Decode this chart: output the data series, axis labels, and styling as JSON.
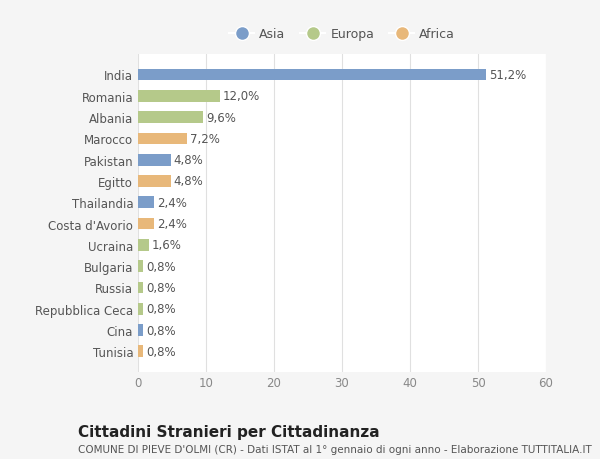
{
  "countries": [
    "India",
    "Romania",
    "Albania",
    "Marocco",
    "Pakistan",
    "Egitto",
    "Thailandia",
    "Costa d'Avorio",
    "Ucraina",
    "Bulgaria",
    "Russia",
    "Repubblica Ceca",
    "Cina",
    "Tunisia"
  ],
  "values": [
    51.2,
    12.0,
    9.6,
    7.2,
    4.8,
    4.8,
    2.4,
    2.4,
    1.6,
    0.8,
    0.8,
    0.8,
    0.8,
    0.8
  ],
  "labels": [
    "51,2%",
    "12,0%",
    "9,6%",
    "7,2%",
    "4,8%",
    "4,8%",
    "2,4%",
    "2,4%",
    "1,6%",
    "0,8%",
    "0,8%",
    "0,8%",
    "0,8%",
    "0,8%"
  ],
  "colors": [
    "#7b9dc9",
    "#b5c98a",
    "#b5c98a",
    "#e8b87a",
    "#7b9dc9",
    "#e8b87a",
    "#7b9dc9",
    "#e8b87a",
    "#b5c98a",
    "#b5c98a",
    "#b5c98a",
    "#b5c98a",
    "#7b9dc9",
    "#e8b87a"
  ],
  "legend_labels": [
    "Asia",
    "Europa",
    "Africa"
  ],
  "legend_colors": [
    "#7b9dc9",
    "#b5c98a",
    "#e8b87a"
  ],
  "title": "Cittadini Stranieri per Cittadinanza",
  "subtitle": "COMUNE DI PIEVE D'OLMI (CR) - Dati ISTAT al 1° gennaio di ogni anno - Elaborazione TUTTITALIA.IT",
  "xlim": [
    0,
    60
  ],
  "xticks": [
    0,
    10,
    20,
    30,
    40,
    50,
    60
  ],
  "bg_color": "#f5f5f5",
  "bar_bg_color": "#ffffff",
  "grid_color": "#e0e0e0",
  "text_color": "#555555",
  "label_fontsize": 8.5,
  "title_fontsize": 11,
  "subtitle_fontsize": 7.5
}
